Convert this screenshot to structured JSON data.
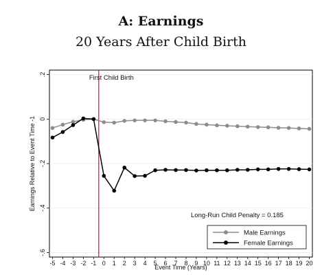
{
  "chart_data": {
    "type": "line",
    "title": "A: Earnings",
    "subtitle": "20 Years After Child Birth",
    "xlabel": "Event Time (Years)",
    "ylabel": "Earnings Relative to Event Time -1",
    "xlim": [
      -5.3,
      20.3
    ],
    "ylim": [
      -0.62,
      0.22
    ],
    "x_ticks": [
      "-5",
      "-4",
      "-3",
      "-2",
      "-1",
      "0",
      "1",
      "2",
      "3",
      "4",
      "5",
      "6",
      "7",
      "8",
      "9",
      "10",
      "11",
      "12",
      "13",
      "14",
      "15",
      "16",
      "17",
      "18",
      "19",
      "20"
    ],
    "y_ticks": [
      ".2",
      "0",
      "-.2",
      "-.4",
      "-.6"
    ],
    "y_tick_values": [
      0.2,
      0,
      -0.2,
      -0.4,
      -0.6
    ],
    "vline_x": -0.5,
    "vline_label": "First Child Birth",
    "vline_color": "#c0143c",
    "annotation": "Long-Run Child Penalty = 0.185",
    "legend_position": "bottom-right",
    "x": [
      -5,
      -4,
      -3,
      -2,
      -1,
      0,
      1,
      2,
      3,
      4,
      5,
      6,
      7,
      8,
      9,
      10,
      11,
      12,
      13,
      14,
      15,
      16,
      17,
      18,
      19,
      20
    ],
    "series": [
      {
        "name": "Male Earnings",
        "color": "#8c8c8c",
        "values": [
          -0.04,
          -0.025,
          -0.012,
          -0.003,
          0.0,
          -0.014,
          -0.016,
          -0.008,
          -0.006,
          -0.006,
          -0.006,
          -0.01,
          -0.013,
          -0.016,
          -0.022,
          -0.025,
          -0.028,
          -0.03,
          -0.032,
          -0.034,
          -0.036,
          -0.037,
          -0.039,
          -0.04,
          -0.042,
          -0.044
        ]
      },
      {
        "name": "Female Earnings",
        "color": "#000000",
        "values": [
          -0.083,
          -0.058,
          -0.027,
          0.003,
          0.0,
          -0.255,
          -0.322,
          -0.218,
          -0.256,
          -0.255,
          -0.23,
          -0.228,
          -0.229,
          -0.229,
          -0.231,
          -0.23,
          -0.23,
          -0.23,
          -0.228,
          -0.228,
          -0.226,
          -0.226,
          -0.224,
          -0.224,
          -0.225,
          -0.226
        ]
      }
    ]
  }
}
